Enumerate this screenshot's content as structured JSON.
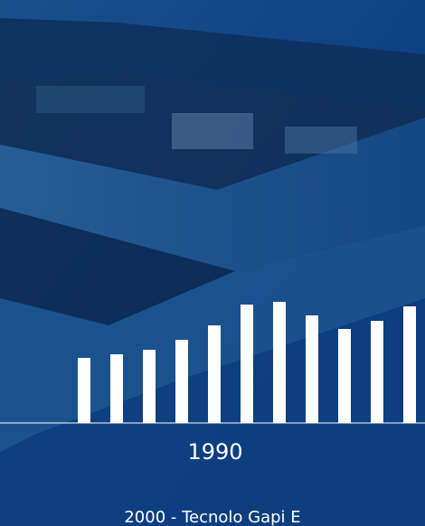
{
  "chart_data": {
    "type": "bar",
    "categories": [
      null,
      null,
      null,
      null,
      "1990",
      null,
      null,
      null,
      null,
      null,
      null
    ],
    "values": [
      72,
      76,
      81,
      92,
      108,
      131,
      134,
      119,
      104,
      113,
      129
    ],
    "color": "#ffffff",
    "ylim": [
      0,
      140
    ],
    "caption": "2000 - Tecnolo Gapi E"
  }
}
